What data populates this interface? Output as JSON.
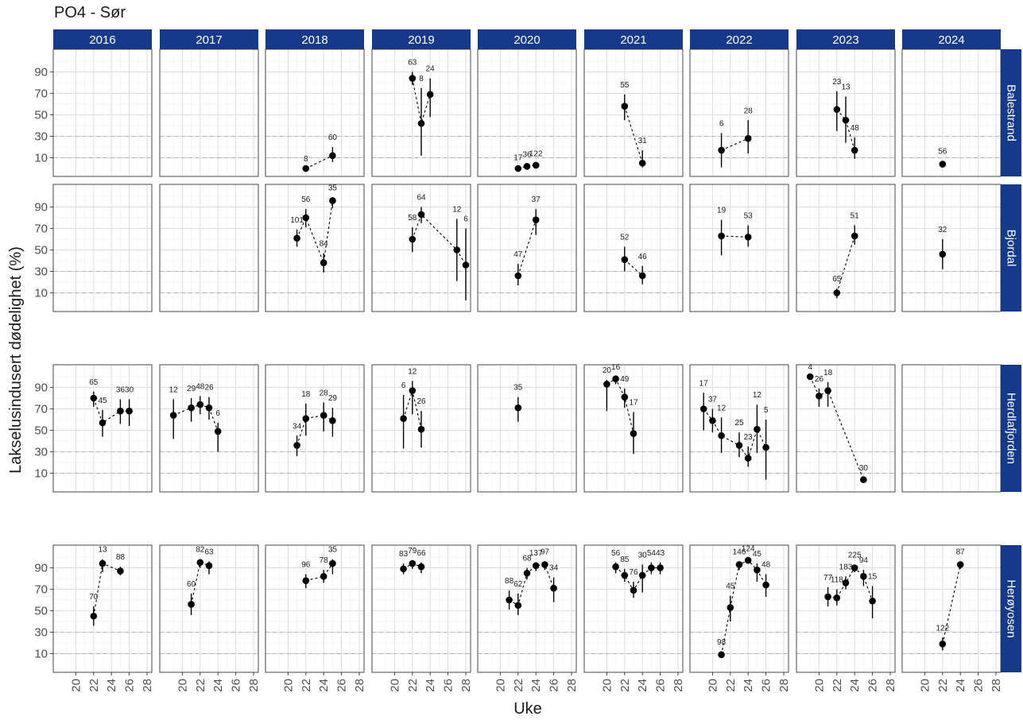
{
  "page": {
    "title": "PO4 - Sør"
  },
  "colors": {
    "strip_fill": "#163a8a",
    "strip_text": "#ffffff",
    "panel_border": "#333333",
    "grid_major": "#dedede",
    "grid_minor": "#f0f0f0",
    "reference_line": "#b3b3b3",
    "point": "#000000"
  },
  "chart_data": {
    "type": "scatter",
    "title": "PO4 - Sør",
    "xlabel": "Uke",
    "ylabel": "Lakselusindusert dødelighet (%)",
    "xlim": [
      18,
      28
    ],
    "ylim": [
      0,
      100
    ],
    "x_ticks": [
      20,
      22,
      24,
      26,
      28
    ],
    "y_ticks": [
      10,
      30,
      50,
      70,
      90
    ],
    "reference_lines_y": [
      10,
      30
    ],
    "grid": true,
    "connect_points": "dashed",
    "error_bars": true,
    "facet_cols": [
      "2016",
      "2017",
      "2018",
      "2019",
      "2020",
      "2021",
      "2022",
      "2023",
      "2024"
    ],
    "facet_rows": [
      "Balestrand",
      "Bjordal",
      "Herdlafjorden",
      "Herøyosen"
    ],
    "panels": [
      {
        "row": "Balestrand",
        "col": "2018",
        "points": [
          {
            "x": 22,
            "y": 0,
            "lo": 0,
            "hi": 0,
            "label": "8"
          },
          {
            "x": 25,
            "y": 12,
            "lo": 6,
            "hi": 20,
            "label": "60"
          }
        ]
      },
      {
        "row": "Balestrand",
        "col": "2019",
        "points": [
          {
            "x": 22,
            "y": 84,
            "lo": 78,
            "hi": 90,
            "label": "63"
          },
          {
            "x": 23,
            "y": 42,
            "lo": 12,
            "hi": 75,
            "label": "8"
          },
          {
            "x": 24,
            "y": 69,
            "lo": 48,
            "hi": 84,
            "label": "24"
          }
        ]
      },
      {
        "row": "Balestrand",
        "col": "2020",
        "points": [
          {
            "x": 22,
            "y": 0,
            "lo": 0,
            "hi": 1,
            "label": "17"
          },
          {
            "x": 23,
            "y": 2,
            "lo": 0,
            "hi": 4,
            "label": "36"
          },
          {
            "x": 24,
            "y": 3,
            "lo": 1,
            "hi": 5,
            "label": "122"
          }
        ]
      },
      {
        "row": "Balestrand",
        "col": "2021",
        "points": [
          {
            "x": 22,
            "y": 58,
            "lo": 45,
            "hi": 69,
            "label": "55"
          },
          {
            "x": 24,
            "y": 5,
            "lo": 1,
            "hi": 17,
            "label": "31"
          }
        ]
      },
      {
        "row": "Balestrand",
        "col": "2022",
        "points": [
          {
            "x": 21,
            "y": 17,
            "lo": 1,
            "hi": 33,
            "label": "6"
          },
          {
            "x": 24,
            "y": 28,
            "lo": 14,
            "hi": 45,
            "label": "28"
          }
        ]
      },
      {
        "row": "Balestrand",
        "col": "2023",
        "points": [
          {
            "x": 22,
            "y": 55,
            "lo": 35,
            "hi": 72,
            "label": "23"
          },
          {
            "x": 23,
            "y": 45,
            "lo": 24,
            "hi": 67,
            "label": "13"
          },
          {
            "x": 24,
            "y": 17,
            "lo": 9,
            "hi": 29,
            "label": "48"
          }
        ]
      },
      {
        "row": "Balestrand",
        "col": "2024",
        "points": [
          {
            "x": 22,
            "y": 4,
            "lo": 1,
            "hi": 7,
            "label": "56"
          }
        ]
      },
      {
        "row": "Bjordal",
        "col": "2018",
        "points": [
          {
            "x": 21,
            "y": 61,
            "lo": 53,
            "hi": 69,
            "label": "101"
          },
          {
            "x": 22,
            "y": 80,
            "lo": 71,
            "hi": 88,
            "label": "56"
          },
          {
            "x": 24,
            "y": 38,
            "lo": 29,
            "hi": 47,
            "label": "84"
          },
          {
            "x": 25,
            "y": 96,
            "lo": 89,
            "hi": 99,
            "label": "35"
          }
        ]
      },
      {
        "row": "Bjordal",
        "col": "2019",
        "points": [
          {
            "x": 22,
            "y": 60,
            "lo": 48,
            "hi": 71,
            "label": "58"
          },
          {
            "x": 23,
            "y": 83,
            "lo": 75,
            "hi": 90,
            "label": "64"
          },
          {
            "x": 27,
            "y": 50,
            "lo": 21,
            "hi": 79,
            "label": "12"
          },
          {
            "x": 28,
            "y": 36,
            "lo": 3,
            "hi": 70,
            "label": "6"
          }
        ]
      },
      {
        "row": "Bjordal",
        "col": "2020",
        "points": [
          {
            "x": 22,
            "y": 26,
            "lo": 17,
            "hi": 37,
            "label": "47"
          },
          {
            "x": 24,
            "y": 78,
            "lo": 64,
            "hi": 88,
            "label": "37"
          }
        ]
      },
      {
        "row": "Bjordal",
        "col": "2021",
        "points": [
          {
            "x": 22,
            "y": 41,
            "lo": 30,
            "hi": 53,
            "label": "52"
          },
          {
            "x": 24,
            "y": 26,
            "lo": 18,
            "hi": 35,
            "label": "46"
          }
        ]
      },
      {
        "row": "Bjordal",
        "col": "2022",
        "points": [
          {
            "x": 21,
            "y": 63,
            "lo": 45,
            "hi": 78,
            "label": "19"
          },
          {
            "x": 24,
            "y": 62,
            "lo": 53,
            "hi": 73,
            "label": "53"
          }
        ]
      },
      {
        "row": "Bjordal",
        "col": "2023",
        "points": [
          {
            "x": 22,
            "y": 10,
            "lo": 5,
            "hi": 14,
            "label": "65"
          },
          {
            "x": 24,
            "y": 63,
            "lo": 55,
            "hi": 73,
            "label": "51"
          }
        ]
      },
      {
        "row": "Bjordal",
        "col": "2024",
        "points": [
          {
            "x": 22,
            "y": 46,
            "lo": 32,
            "hi": 60,
            "label": "32"
          }
        ]
      },
      {
        "row": "Herdlafjorden",
        "col": "2016",
        "points": [
          {
            "x": 22,
            "y": 80,
            "lo": 72,
            "hi": 86,
            "label": "65"
          },
          {
            "x": 23,
            "y": 57,
            "lo": 44,
            "hi": 69,
            "label": "45"
          },
          {
            "x": 25,
            "y": 68,
            "lo": 56,
            "hi": 79,
            "label": "36"
          },
          {
            "x": 26,
            "y": 68,
            "lo": 54,
            "hi": 79,
            "label": "30"
          }
        ]
      },
      {
        "row": "Herdlafjorden",
        "col": "2017",
        "points": [
          {
            "x": 19,
            "y": 64,
            "lo": 42,
            "hi": 79,
            "label": "12"
          },
          {
            "x": 21,
            "y": 71,
            "lo": 58,
            "hi": 80,
            "label": "29"
          },
          {
            "x": 22,
            "y": 74,
            "lo": 65,
            "hi": 82,
            "label": "48"
          },
          {
            "x": 23,
            "y": 71,
            "lo": 60,
            "hi": 81,
            "label": "26"
          },
          {
            "x": 24,
            "y": 49,
            "lo": 30,
            "hi": 57,
            "label": "6"
          }
        ]
      },
      {
        "row": "Herdlafjorden",
        "col": "2018",
        "points": [
          {
            "x": 21,
            "y": 36,
            "lo": 26,
            "hi": 45,
            "label": "34"
          },
          {
            "x": 22,
            "y": 61,
            "lo": 45,
            "hi": 75,
            "label": "18"
          },
          {
            "x": 24,
            "y": 64,
            "lo": 49,
            "hi": 76,
            "label": "28"
          },
          {
            "x": 25,
            "y": 59,
            "lo": 44,
            "hi": 71,
            "label": "29"
          }
        ]
      },
      {
        "row": "Herdlafjorden",
        "col": "2019",
        "points": [
          {
            "x": 21,
            "y": 61,
            "lo": 33,
            "hi": 83,
            "label": "6"
          },
          {
            "x": 22,
            "y": 87,
            "lo": 65,
            "hi": 96,
            "label": "12"
          },
          {
            "x": 23,
            "y": 51,
            "lo": 34,
            "hi": 68,
            "label": "26"
          }
        ]
      },
      {
        "row": "Herdlafjorden",
        "col": "2020",
        "points": [
          {
            "x": 22,
            "y": 71,
            "lo": 58,
            "hi": 81,
            "label": "35"
          }
        ]
      },
      {
        "row": "Herdlafjorden",
        "col": "2021",
        "points": [
          {
            "x": 20,
            "y": 93,
            "lo": 68,
            "hi": 97,
            "label": "20"
          },
          {
            "x": 21,
            "y": 98,
            "lo": 93,
            "hi": 100,
            "label": "16"
          },
          {
            "x": 22,
            "y": 81,
            "lo": 71,
            "hi": 89,
            "label": "49"
          },
          {
            "x": 23,
            "y": 47,
            "lo": 28,
            "hi": 67,
            "label": "17"
          }
        ]
      },
      {
        "row": "Herdlafjorden",
        "col": "2022",
        "points": [
          {
            "x": 19,
            "y": 70,
            "lo": 50,
            "hi": 85,
            "label": "17"
          },
          {
            "x": 20,
            "y": 59,
            "lo": 48,
            "hi": 70,
            "label": "37"
          },
          {
            "x": 21,
            "y": 45,
            "lo": 29,
            "hi": 62,
            "label": "12"
          },
          {
            "x": 23,
            "y": 36,
            "lo": 25,
            "hi": 48,
            "label": "25"
          },
          {
            "x": 24,
            "y": 24,
            "lo": 16,
            "hi": 35,
            "label": "23"
          },
          {
            "x": 25,
            "y": 51,
            "lo": 29,
            "hi": 74,
            "label": "12"
          },
          {
            "x": 26,
            "y": 34,
            "lo": 4,
            "hi": 60,
            "label": "5"
          }
        ]
      },
      {
        "row": "Herdlafjorden",
        "col": "2023",
        "points": [
          {
            "x": 19,
            "y": 100,
            "lo": 100,
            "hi": 100,
            "label": "4"
          },
          {
            "x": 20,
            "y": 82,
            "lo": 72,
            "hi": 89,
            "label": "26"
          },
          {
            "x": 21,
            "y": 87,
            "lo": 72,
            "hi": 95,
            "label": "18"
          },
          {
            "x": 25,
            "y": 4,
            "lo": 2,
            "hi": 6,
            "label": "30"
          }
        ]
      },
      {
        "row": "Herøyosen",
        "col": "2016",
        "points": [
          {
            "x": 22,
            "y": 45,
            "lo": 36,
            "hi": 54,
            "label": "70"
          },
          {
            "x": 23,
            "y": 94,
            "lo": 86,
            "hi": 98,
            "label": "13"
          },
          {
            "x": 25,
            "y": 87,
            "lo": 83,
            "hi": 91,
            "label": "88"
          }
        ]
      },
      {
        "row": "Herøyosen",
        "col": "2017",
        "points": [
          {
            "x": 21,
            "y": 56,
            "lo": 46,
            "hi": 66,
            "label": "60"
          },
          {
            "x": 22,
            "y": 95,
            "lo": 90,
            "hi": 98,
            "label": "82"
          },
          {
            "x": 23,
            "y": 92,
            "lo": 84,
            "hi": 96,
            "label": "63"
          }
        ]
      },
      {
        "row": "Herøyosen",
        "col": "2018",
        "points": [
          {
            "x": 22,
            "y": 78,
            "lo": 71,
            "hi": 84,
            "label": "96"
          },
          {
            "x": 24,
            "y": 82,
            "lo": 76,
            "hi": 88,
            "label": "78"
          },
          {
            "x": 25,
            "y": 94,
            "lo": 84,
            "hi": 98,
            "label": "35"
          }
        ]
      },
      {
        "row": "Herøyosen",
        "col": "2019",
        "points": [
          {
            "x": 21,
            "y": 89,
            "lo": 84,
            "hi": 94,
            "label": "83"
          },
          {
            "x": 22,
            "y": 94,
            "lo": 89,
            "hi": 97,
            "label": "79"
          },
          {
            "x": 23,
            "y": 91,
            "lo": 85,
            "hi": 95,
            "label": "66"
          }
        ]
      },
      {
        "row": "Herøyosen",
        "col": "2020",
        "points": [
          {
            "x": 21,
            "y": 60,
            "lo": 51,
            "hi": 69,
            "label": "88"
          },
          {
            "x": 22,
            "y": 55,
            "lo": 46,
            "hi": 66,
            "label": "62"
          },
          {
            "x": 23,
            "y": 85,
            "lo": 79,
            "hi": 90,
            "label": "68"
          },
          {
            "x": 24,
            "y": 92,
            "lo": 87,
            "hi": 95,
            "label": "137"
          },
          {
            "x": 25,
            "y": 93,
            "lo": 88,
            "hi": 96,
            "label": "97"
          },
          {
            "x": 26,
            "y": 71,
            "lo": 58,
            "hi": 81,
            "label": "34"
          }
        ]
      },
      {
        "row": "Herøyosen",
        "col": "2021",
        "points": [
          {
            "x": 21,
            "y": 91,
            "lo": 85,
            "hi": 95,
            "label": "56"
          },
          {
            "x": 22,
            "y": 83,
            "lo": 77,
            "hi": 89,
            "label": "85"
          },
          {
            "x": 23,
            "y": 69,
            "lo": 62,
            "hi": 77,
            "label": "76"
          },
          {
            "x": 24,
            "y": 83,
            "lo": 67,
            "hi": 93,
            "label": "30"
          },
          {
            "x": 25,
            "y": 90,
            "lo": 84,
            "hi": 95,
            "label": "54"
          },
          {
            "x": 26,
            "y": 90,
            "lo": 84,
            "hi": 95,
            "label": "43"
          }
        ]
      },
      {
        "row": "Herøyosen",
        "col": "2022",
        "points": [
          {
            "x": 21,
            "y": 9,
            "lo": 7,
            "hi": 12,
            "label": "98"
          },
          {
            "x": 22,
            "y": 53,
            "lo": 40,
            "hi": 64,
            "label": "45"
          },
          {
            "x": 23,
            "y": 93,
            "lo": 88,
            "hi": 96,
            "label": "146"
          },
          {
            "x": 24,
            "y": 97,
            "lo": 94,
            "hi": 99,
            "label": "124"
          },
          {
            "x": 25,
            "y": 88,
            "lo": 77,
            "hi": 94,
            "label": "45"
          },
          {
            "x": 26,
            "y": 74,
            "lo": 63,
            "hi": 84,
            "label": "48"
          }
        ]
      },
      {
        "row": "Herøyosen",
        "col": "2023",
        "points": [
          {
            "x": 21,
            "y": 63,
            "lo": 54,
            "hi": 72,
            "label": "77"
          },
          {
            "x": 22,
            "y": 62,
            "lo": 55,
            "hi": 70,
            "label": "118"
          },
          {
            "x": 23,
            "y": 76,
            "lo": 70,
            "hi": 82,
            "label": "183"
          },
          {
            "x": 24,
            "y": 90,
            "lo": 86,
            "hi": 93,
            "label": "225"
          },
          {
            "x": 25,
            "y": 82,
            "lo": 73,
            "hi": 88,
            "label": "94"
          },
          {
            "x": 26,
            "y": 59,
            "lo": 43,
            "hi": 73,
            "label": "15"
          }
        ]
      },
      {
        "row": "Herøyosen",
        "col": "2024",
        "points": [
          {
            "x": 22,
            "y": 19,
            "lo": 13,
            "hi": 25,
            "label": "122"
          },
          {
            "x": 24,
            "y": 93,
            "lo": 89,
            "hi": 96,
            "label": "87"
          }
        ]
      }
    ]
  }
}
